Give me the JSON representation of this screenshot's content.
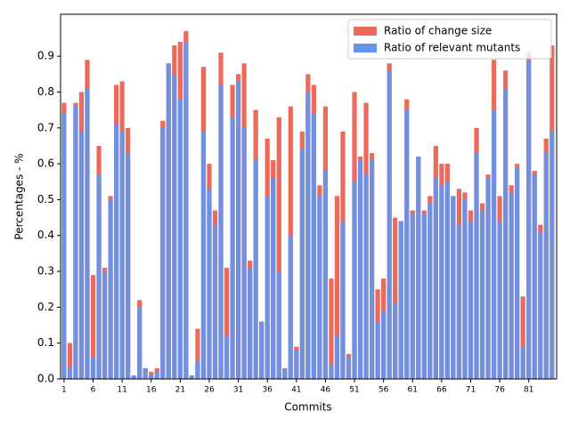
{
  "chart_data": {
    "type": "bar",
    "xlabel": "Commits",
    "ylabel": "Percentages - %",
    "x": [
      1,
      2,
      3,
      4,
      5,
      6,
      7,
      8,
      9,
      10,
      11,
      12,
      13,
      14,
      15,
      16,
      17,
      18,
      19,
      20,
      21,
      22,
      23,
      24,
      25,
      26,
      27,
      28,
      29,
      30,
      31,
      32,
      33,
      34,
      35,
      36,
      37,
      38,
      39,
      40,
      41,
      42,
      43,
      44,
      45,
      46,
      47,
      48,
      49,
      50,
      51,
      52,
      53,
      54,
      55,
      56,
      57,
      58,
      59,
      60,
      61,
      62,
      63,
      64,
      65,
      66,
      67,
      68,
      69,
      70,
      71,
      72,
      73,
      74,
      75,
      76,
      77,
      78,
      79,
      80,
      81,
      82,
      83,
      84,
      85
    ],
    "series": [
      {
        "name": "Ratio of change size",
        "color": "#ec6a5c",
        "values": [
          0.77,
          0.1,
          0.77,
          0.8,
          0.89,
          0.29,
          0.65,
          0.31,
          0.51,
          0.82,
          0.83,
          0.7,
          0.01,
          0.22,
          0.03,
          0.02,
          0.03,
          0.72,
          0.88,
          0.93,
          0.94,
          0.97,
          0.01,
          0.14,
          0.87,
          0.6,
          0.47,
          0.91,
          0.31,
          0.82,
          0.85,
          0.88,
          0.33,
          0.75,
          0.16,
          0.67,
          0.61,
          0.73,
          0.03,
          0.76,
          0.09,
          0.69,
          0.85,
          0.82,
          0.54,
          0.76,
          0.28,
          0.51,
          0.69,
          0.07,
          0.8,
          0.62,
          0.77,
          0.63,
          0.25,
          0.28,
          0.88,
          0.45,
          0.44,
          0.78,
          0.47,
          0.62,
          0.47,
          0.51,
          0.65,
          0.6,
          0.6,
          0.51,
          0.53,
          0.52,
          0.47,
          0.7,
          0.49,
          0.57,
          0.89,
          0.51,
          0.86,
          0.54,
          0.6,
          0.23,
          0.91,
          0.58,
          0.43,
          0.67,
          0.93
        ]
      },
      {
        "name": "Ratio of relevant mutants",
        "color": "#6495ed",
        "values": [
          0.74,
          0.03,
          0.76,
          0.69,
          0.81,
          0.06,
          0.57,
          0.3,
          0.5,
          0.71,
          0.69,
          0.63,
          0.01,
          0.2,
          0.03,
          0.01,
          0.02,
          0.7,
          0.88,
          0.85,
          0.78,
          0.94,
          0.01,
          0.05,
          0.69,
          0.53,
          0.43,
          0.82,
          0.12,
          0.73,
          0.83,
          0.7,
          0.31,
          0.61,
          0.16,
          0.51,
          0.56,
          0.3,
          0.03,
          0.4,
          0.08,
          0.64,
          0.8,
          0.74,
          0.51,
          0.58,
          0.04,
          0.12,
          0.44,
          0.06,
          0.55,
          0.61,
          0.57,
          0.61,
          0.16,
          0.19,
          0.86,
          0.21,
          0.44,
          0.75,
          0.46,
          0.62,
          0.46,
          0.49,
          0.56,
          0.54,
          0.55,
          0.51,
          0.43,
          0.5,
          0.44,
          0.63,
          0.47,
          0.56,
          0.75,
          0.44,
          0.81,
          0.52,
          0.59,
          0.09,
          0.89,
          0.57,
          0.41,
          0.63,
          0.69
        ]
      }
    ],
    "xlim": [
      0.4,
      85.8
    ],
    "xticks": [
      1,
      6,
      11,
      16,
      21,
      26,
      31,
      36,
      41,
      46,
      51,
      56,
      61,
      66,
      71,
      76,
      81
    ],
    "ylim": [
      0,
      1.017
    ],
    "yticks": [
      {
        "value": 0,
        "label": "0.0"
      },
      {
        "value": 0.1,
        "label": "0.1"
      },
      {
        "value": 0.2,
        "label": "0.2"
      },
      {
        "value": 0.3,
        "label": "0.3"
      },
      {
        "value": 0.4,
        "label": "0.4"
      },
      {
        "value": 0.5,
        "label": "0.5"
      },
      {
        "value": 0.6,
        "label": "0.6"
      },
      {
        "value": 0.7,
        "label": "0.7"
      },
      {
        "value": 0.8,
        "label": "0.8"
      },
      {
        "value": 0.9,
        "label": "0.9"
      }
    ],
    "legend": "upper right"
  }
}
